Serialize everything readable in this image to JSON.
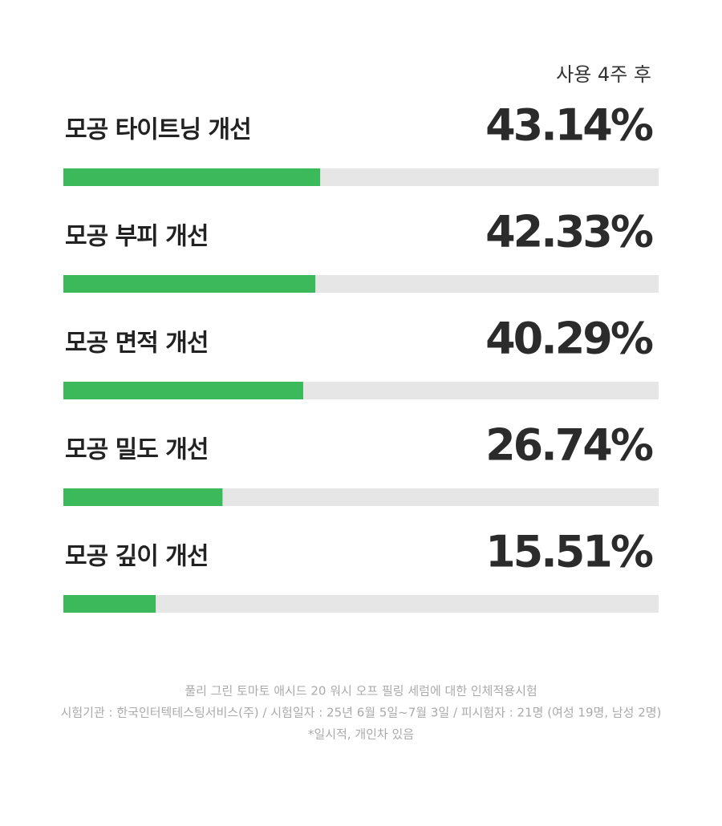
{
  "chart_data": {
    "type": "bar",
    "orientation": "horizontal",
    "column_header": "사용 4주 후",
    "categories": [
      "모공 타이트닝 개선",
      "모공 부피 개선",
      "모공 면적 개선",
      "모공 밀도 개선",
      "모공 깊이 개선"
    ],
    "values": [
      43.14,
      42.33,
      40.29,
      26.74,
      15.51
    ],
    "value_labels": [
      "43.14%",
      "42.33%",
      "40.29%",
      "26.74%",
      "15.51%"
    ],
    "color": "#3cb95a",
    "track_color": "#e6e6e6",
    "xlim": [
      0,
      100
    ],
    "notes": [
      "풀리 그린 토마토 애시드 20 워시 오프 필링 세럼에 대한 인체적용시험",
      "시험기관 : 한국인터텍테스팅서비스(주) / 시험일자 : 25년 6월 5일~7월 3일 / 피시험자 : 21명 (여성 19명, 남성 2명)",
      "*일시적, 개인차 있음"
    ]
  }
}
